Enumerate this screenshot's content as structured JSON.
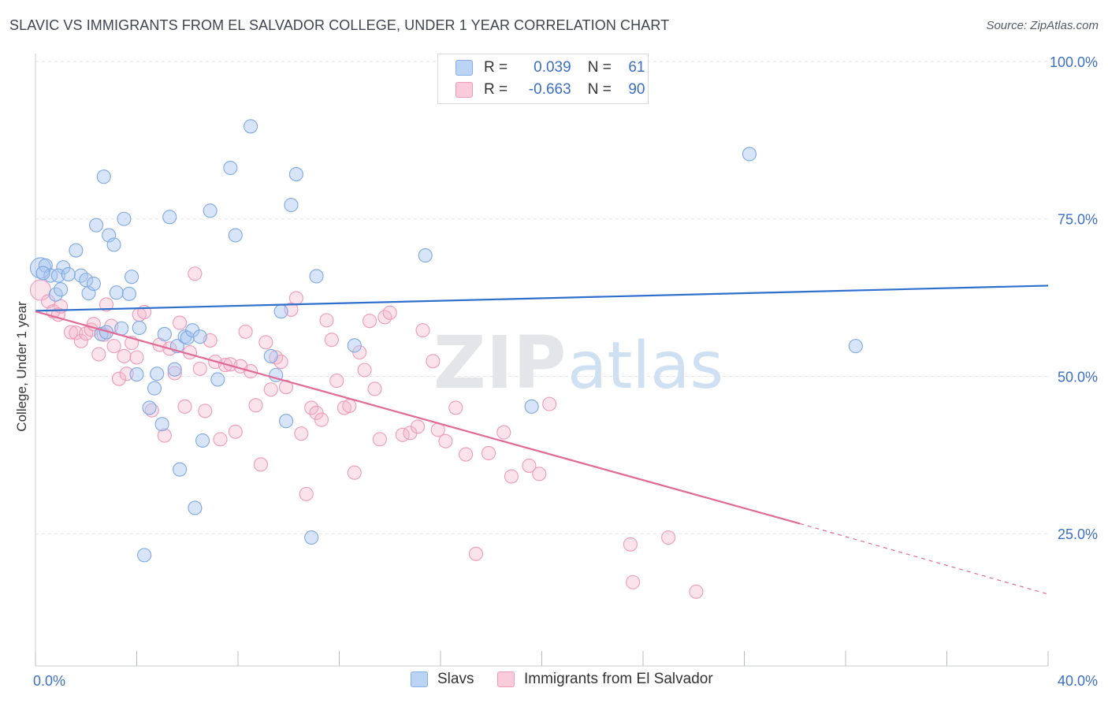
{
  "title": "SLAVIC VS IMMIGRANTS FROM EL SALVADOR COLLEGE, UNDER 1 YEAR CORRELATION CHART",
  "source": "Source: ZipAtlas.com",
  "watermark": {
    "zip": "ZIP",
    "atlas": "atlas"
  },
  "legend": {
    "slavs": {
      "r_label": "R =",
      "r_value": "0.039",
      "n_label": "N =",
      "n_value": "61"
    },
    "salvador": {
      "r_label": "R =",
      "r_value": "-0.663",
      "n_label": "N =",
      "n_value": "90"
    }
  },
  "bottom_legend": {
    "slavs": "Slavs",
    "salvador": "Immigrants from El Salvador"
  },
  "chart_data": {
    "type": "scatter",
    "xlabel": "",
    "ylabel": "College, Under 1 year",
    "xlim": [
      0,
      40
    ],
    "ylim": [
      4,
      100
    ],
    "x_tick_labels": [
      {
        "x": 0,
        "label": "0.0%"
      },
      {
        "x": 40,
        "label": "40.0%"
      }
    ],
    "y_tick_labels": [
      {
        "y": 100,
        "label": "100.0%"
      },
      {
        "y": 75,
        "label": "75.0%"
      },
      {
        "y": 50,
        "label": "50.0%"
      },
      {
        "y": 25,
        "label": "25.0%"
      }
    ],
    "grid": true,
    "colors": {
      "slavs": "#a9c6ef",
      "slavs_line": "#2f6fcc",
      "salvador": "#f4b6cb",
      "salvador_line": "#e06b96",
      "tick_label": "#3a6fc4"
    },
    "series": [
      {
        "name": "Slavs",
        "trend": {
          "x0": 0,
          "y0": 60.4,
          "x1": 40,
          "y1": 64.4
        },
        "points": [
          [
            0.2,
            67.2
          ],
          [
            0.4,
            67.6
          ],
          [
            0.6,
            66.0
          ],
          [
            0.8,
            63.0
          ],
          [
            1.0,
            63.8
          ],
          [
            1.1,
            67.3
          ],
          [
            0.9,
            66.0
          ],
          [
            1.6,
            70.0
          ],
          [
            1.8,
            66.0
          ],
          [
            2.0,
            65.3
          ],
          [
            2.1,
            63.2
          ],
          [
            2.3,
            64.7
          ],
          [
            2.4,
            74.0
          ],
          [
            2.6,
            56.7
          ],
          [
            2.7,
            81.7
          ],
          [
            2.9,
            72.4
          ],
          [
            3.1,
            70.9
          ],
          [
            3.2,
            63.3
          ],
          [
            3.4,
            57.6
          ],
          [
            3.5,
            75.0
          ],
          [
            3.7,
            63.1
          ],
          [
            3.8,
            65.8
          ],
          [
            4.0,
            50.3
          ],
          [
            4.1,
            57.7
          ],
          [
            4.3,
            21.6
          ],
          [
            4.5,
            45.0
          ],
          [
            4.7,
            48.1
          ],
          [
            4.8,
            50.4
          ],
          [
            5.0,
            42.4
          ],
          [
            5.1,
            56.7
          ],
          [
            5.3,
            75.3
          ],
          [
            5.5,
            51.1
          ],
          [
            5.6,
            54.8
          ],
          [
            5.7,
            35.2
          ],
          [
            5.9,
            56.3
          ],
          [
            6.0,
            56.1
          ],
          [
            6.2,
            57.3
          ],
          [
            6.3,
            29.1
          ],
          [
            6.5,
            56.3
          ],
          [
            6.6,
            39.8
          ],
          [
            6.9,
            76.3
          ],
          [
            7.2,
            49.5
          ],
          [
            7.7,
            83.1
          ],
          [
            7.9,
            72.4
          ],
          [
            8.5,
            89.7
          ],
          [
            9.3,
            53.2
          ],
          [
            9.5,
            50.2
          ],
          [
            9.7,
            60.3
          ],
          [
            9.9,
            42.9
          ],
          [
            10.1,
            77.2
          ],
          [
            10.3,
            82.1
          ],
          [
            10.9,
            24.4
          ],
          [
            11.1,
            65.9
          ],
          [
            12.6,
            54.9
          ],
          [
            15.4,
            69.2
          ],
          [
            19.6,
            45.2
          ],
          [
            28.2,
            85.3
          ],
          [
            32.4,
            54.8
          ],
          [
            0.3,
            66.4
          ],
          [
            1.3,
            66.2
          ],
          [
            2.8,
            57.0
          ]
        ]
      },
      {
        "name": "Immigrants from El Salvador",
        "trend": {
          "x0": 0,
          "y0": 60.3,
          "x1": 30.2,
          "y1": 26.6,
          "dash_x1": 40,
          "dash_y1": 15.4
        },
        "points": [
          [
            0.2,
            63.7
          ],
          [
            0.5,
            61.9
          ],
          [
            0.7,
            60.3
          ],
          [
            0.9,
            59.8
          ],
          [
            1.0,
            61.1
          ],
          [
            1.4,
            57.0
          ],
          [
            1.6,
            56.9
          ],
          [
            1.8,
            55.6
          ],
          [
            2.0,
            56.8
          ],
          [
            2.2,
            57.4
          ],
          [
            2.3,
            58.3
          ],
          [
            2.5,
            53.5
          ],
          [
            2.7,
            56.6
          ],
          [
            2.8,
            61.4
          ],
          [
            3.0,
            58.0
          ],
          [
            3.1,
            54.8
          ],
          [
            3.3,
            49.6
          ],
          [
            3.5,
            53.2
          ],
          [
            3.6,
            50.4
          ],
          [
            3.8,
            55.3
          ],
          [
            4.0,
            53.0
          ],
          [
            4.1,
            59.8
          ],
          [
            4.3,
            60.2
          ],
          [
            4.6,
            44.6
          ],
          [
            4.9,
            55.0
          ],
          [
            5.1,
            40.6
          ],
          [
            5.3,
            54.4
          ],
          [
            5.5,
            50.5
          ],
          [
            5.7,
            58.5
          ],
          [
            5.9,
            45.2
          ],
          [
            6.1,
            53.8
          ],
          [
            6.3,
            66.3
          ],
          [
            6.5,
            51.2
          ],
          [
            6.7,
            44.5
          ],
          [
            6.9,
            55.7
          ],
          [
            7.1,
            52.3
          ],
          [
            7.3,
            40.0
          ],
          [
            7.5,
            51.8
          ],
          [
            7.7,
            51.9
          ],
          [
            7.9,
            41.2
          ],
          [
            8.1,
            51.6
          ],
          [
            8.3,
            57.1
          ],
          [
            8.5,
            50.8
          ],
          [
            8.7,
            45.4
          ],
          [
            8.9,
            36.0
          ],
          [
            9.1,
            55.4
          ],
          [
            9.3,
            47.9
          ],
          [
            9.5,
            53.0
          ],
          [
            9.7,
            52.3
          ],
          [
            9.9,
            48.3
          ],
          [
            10.1,
            60.6
          ],
          [
            10.3,
            62.4
          ],
          [
            10.5,
            40.9
          ],
          [
            10.7,
            31.3
          ],
          [
            10.9,
            45.0
          ],
          [
            11.1,
            44.2
          ],
          [
            11.3,
            43.1
          ],
          [
            11.5,
            58.9
          ],
          [
            11.7,
            55.8
          ],
          [
            11.9,
            49.3
          ],
          [
            12.2,
            45.0
          ],
          [
            12.4,
            45.3
          ],
          [
            12.6,
            34.7
          ],
          [
            12.8,
            53.8
          ],
          [
            13.0,
            51.0
          ],
          [
            13.2,
            58.8
          ],
          [
            13.4,
            48.0
          ],
          [
            13.6,
            40.0
          ],
          [
            13.8,
            59.4
          ],
          [
            14.0,
            60.1
          ],
          [
            14.5,
            40.7
          ],
          [
            14.8,
            41.0
          ],
          [
            15.1,
            42.0
          ],
          [
            15.3,
            57.3
          ],
          [
            15.7,
            52.4
          ],
          [
            15.9,
            41.5
          ],
          [
            16.2,
            39.7
          ],
          [
            16.6,
            45.0
          ],
          [
            17.0,
            37.6
          ],
          [
            17.4,
            21.8
          ],
          [
            17.9,
            37.8
          ],
          [
            18.5,
            41.1
          ],
          [
            18.8,
            34.1
          ],
          [
            19.5,
            35.8
          ],
          [
            19.9,
            34.5
          ],
          [
            20.3,
            45.6
          ],
          [
            23.5,
            23.3
          ],
          [
            25.0,
            24.4
          ],
          [
            26.1,
            15.8
          ],
          [
            23.6,
            17.3
          ]
        ]
      }
    ]
  }
}
